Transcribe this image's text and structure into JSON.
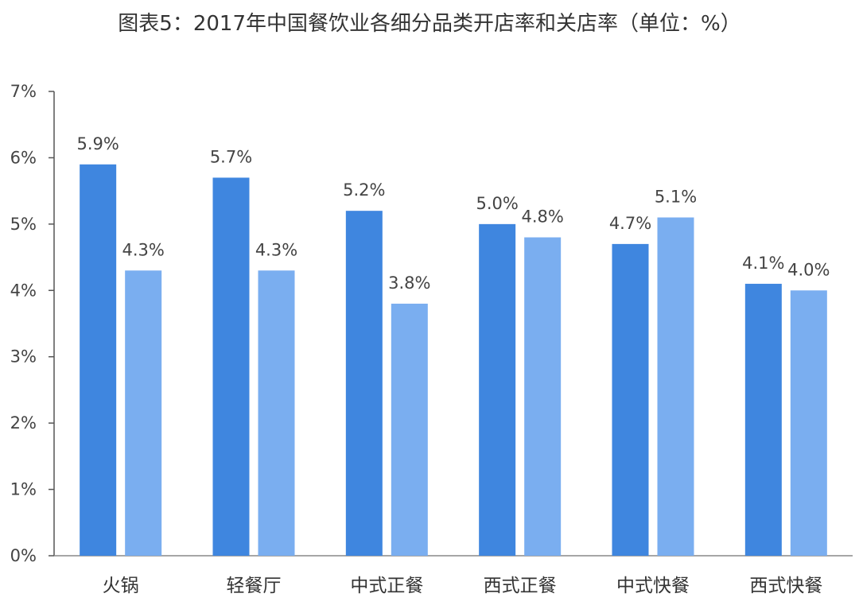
{
  "chart_data": {
    "type": "bar",
    "title": "图表5：2017年中国餐饮业各细分品类开店率和关店率（单位：%）",
    "categories": [
      "火锅",
      "轻餐厅",
      "中式正餐",
      "西式正餐",
      "中式快餐",
      "西式快餐"
    ],
    "series": [
      {
        "values": [
          5.9,
          5.7,
          5.2,
          5.0,
          4.7,
          4.1
        ],
        "labels": [
          "5.9%",
          "5.7%",
          "5.2%",
          "5.0%",
          "4.7%",
          "4.1%"
        ],
        "color": "#3f86df"
      },
      {
        "values": [
          4.3,
          4.3,
          3.8,
          4.8,
          5.1,
          4.0
        ],
        "labels": [
          "4.3%",
          "4.3%",
          "3.8%",
          "4.8%",
          "5.1%",
          "4.0%"
        ],
        "color": "#7aaef0"
      }
    ],
    "yticks": [
      "0%",
      "1%",
      "2%",
      "3%",
      "4%",
      "5%",
      "6%",
      "7%"
    ],
    "ylim": [
      0,
      7
    ],
    "xlabel": "",
    "ylabel": "",
    "grid": false,
    "legend": "none"
  }
}
